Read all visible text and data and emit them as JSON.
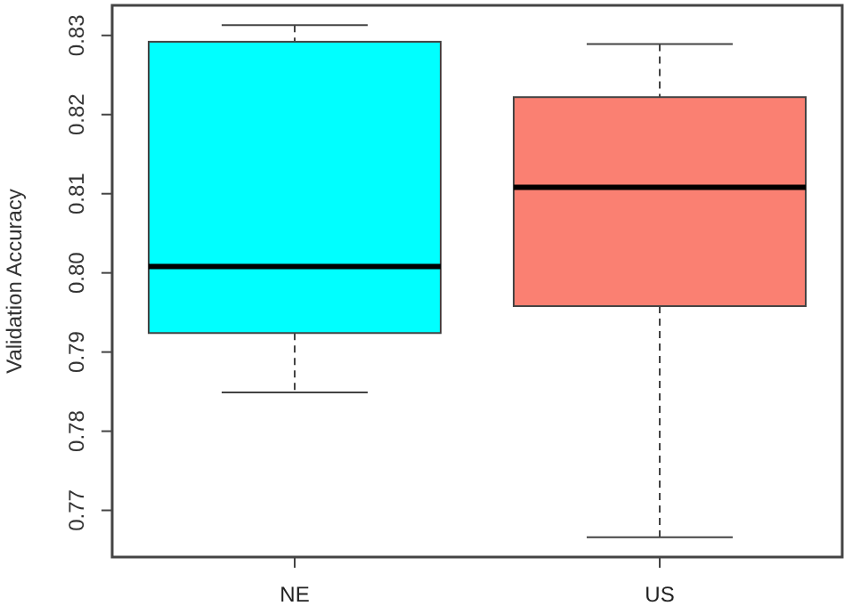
{
  "chart_data": {
    "type": "box",
    "ylabel": "Validation Accuracy",
    "categories": [
      "NE",
      "US"
    ],
    "colors": [
      "#00ffff",
      "#fa8072"
    ],
    "boxes": [
      {
        "low": 0.7849,
        "q1": 0.7924,
        "median": 0.8008,
        "q3": 0.8292,
        "high": 0.8313
      },
      {
        "low": 0.7666,
        "q1": 0.7958,
        "median": 0.8108,
        "q3": 0.8222,
        "high": 0.8289
      }
    ],
    "ylim": [
      0.7641,
      0.8338
    ],
    "yticks": [
      {
        "value": 0.77,
        "label": "0.77"
      },
      {
        "value": 0.78,
        "label": "0.78"
      },
      {
        "value": 0.79,
        "label": "0.79"
      },
      {
        "value": 0.8,
        "label": "0.80"
      },
      {
        "value": 0.81,
        "label": "0.81"
      },
      {
        "value": 0.82,
        "label": "0.82"
      },
      {
        "value": 0.83,
        "label": "0.83"
      }
    ],
    "grid": false
  }
}
